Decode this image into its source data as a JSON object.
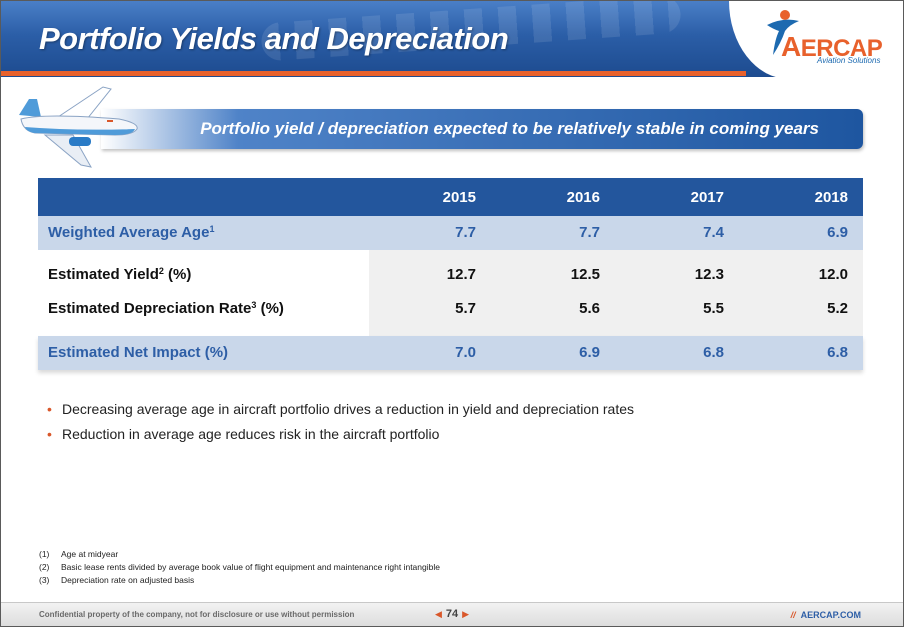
{
  "header": {
    "title": "Portfolio Yields and Depreciation",
    "logo": {
      "brand": "AERCAP",
      "tagline": "Aviation Solutions",
      "icon": "aircap-figure-icon"
    }
  },
  "subtitle": "Portfolio yield / depreciation expected to be relatively stable in coming years",
  "table": {
    "columns": [
      "2015",
      "2016",
      "2017",
      "2018"
    ],
    "rows": [
      {
        "label": "Weighted Average Age",
        "sup": "1",
        "after": "",
        "values": [
          "7.7",
          "7.7",
          "7.4",
          "6.9"
        ]
      },
      {
        "label": "Estimated Yield",
        "sup": "2",
        "after": " (%)",
        "values": [
          "12.7",
          "12.5",
          "12.3",
          "12.0"
        ]
      },
      {
        "label": "Estimated Depreciation Rate",
        "sup": "3",
        "after": " (%)",
        "values": [
          "5.7",
          "5.6",
          "5.5",
          "5.2"
        ]
      },
      {
        "label": "Estimated Net Impact (%)",
        "sup": "",
        "after": "",
        "values": [
          "7.0",
          "6.9",
          "6.8",
          "6.8"
        ]
      }
    ]
  },
  "bullets": [
    "Decreasing average age in aircraft portfolio drives a reduction in yield and depreciation rates",
    "Reduction in average age reduces risk in the aircraft portfolio"
  ],
  "footnotes": [
    {
      "num": "(1)",
      "text": "Age at midyear"
    },
    {
      "num": "(2)",
      "text": "Basic lease rents divided by average book value of flight equipment and maintenance right intangible"
    },
    {
      "num": "(3)",
      "text": "Depreciation rate on adjusted basis"
    }
  ],
  "footer": {
    "confidential": "Confidential property of the company, not for disclosure or use without permission",
    "page": "74",
    "site": "AERCAP.COM"
  },
  "colors": {
    "brand_blue": "#23569d",
    "accent_orange": "#e8612c",
    "row_tint": "#c9d7ea"
  }
}
